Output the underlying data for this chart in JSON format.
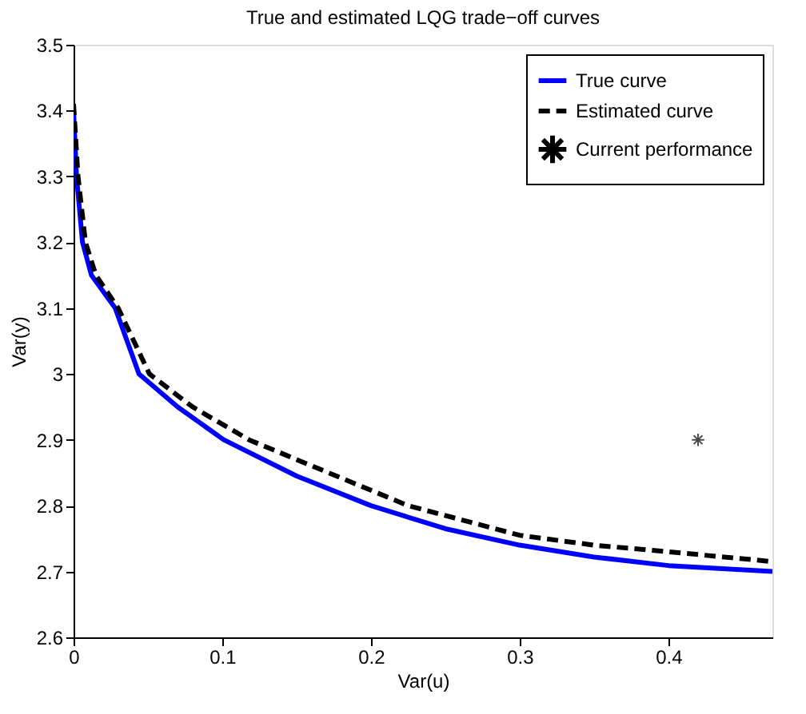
{
  "chart_data": {
    "type": "line",
    "title": "True and estimated LQG trade−off curves",
    "xlabel": "Var(u)",
    "ylabel": "Var(y)",
    "xlim": [
      0,
      0.47
    ],
    "ylim": [
      2.6,
      3.5
    ],
    "xticks": [
      0,
      0.1,
      0.2,
      0.3,
      0.4
    ],
    "yticks": [
      2.6,
      2.7,
      2.8,
      2.9,
      3,
      3.1,
      3.2,
      3.3,
      3.4,
      3.5
    ],
    "grid": false,
    "legend": "top right",
    "series": [
      {
        "name": "True curve",
        "color": "#0000ff",
        "line_style": "solid",
        "x": [
          0,
          0.002,
          0.006,
          0.012,
          0.028,
          0.044,
          0.07,
          0.101,
          0.15,
          0.2,
          0.25,
          0.3,
          0.35,
          0.4,
          0.47
        ],
        "values": [
          3.4,
          3.3,
          3.2,
          3.15,
          3.1,
          3.0,
          2.95,
          2.9,
          2.845,
          2.8,
          2.765,
          2.74,
          2.722,
          2.709,
          2.7
        ]
      },
      {
        "name": "Estimated curve",
        "color": "#000000",
        "line_style": "dashed",
        "x": [
          0,
          0.003,
          0.008,
          0.015,
          0.03,
          0.051,
          0.08,
          0.118,
          0.15,
          0.225,
          0.3,
          0.35,
          0.4,
          0.47
        ],
        "values": [
          3.41,
          3.3,
          3.2,
          3.15,
          3.1,
          3.0,
          2.95,
          2.9,
          2.87,
          2.8,
          2.755,
          2.74,
          2.73,
          2.715
        ]
      },
      {
        "name": "Current performance",
        "type": "scatter",
        "marker": "cross",
        "color": "#000000",
        "x": [
          0.42
        ],
        "values": [
          2.9
        ]
      }
    ]
  }
}
